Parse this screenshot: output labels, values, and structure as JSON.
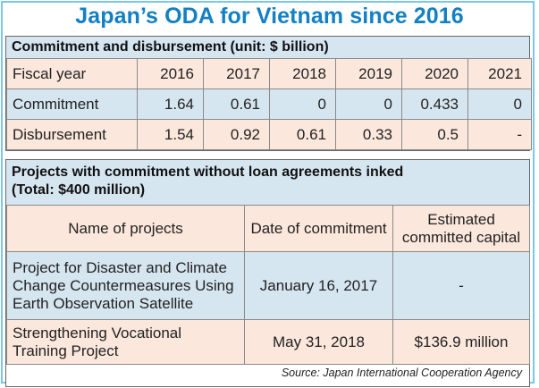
{
  "title": "Japan’s ODA for Vietnam since 2016",
  "section1": {
    "heading": "Commitment and disbursement (unit: $ billion)",
    "header_label": "Fiscal year",
    "years": [
      "2016",
      "2017",
      "2018",
      "2019",
      "2020",
      "2021"
    ],
    "rows": [
      {
        "label": "Commitment",
        "values": [
          "1.64",
          "0.61",
          "0",
          "0",
          "0.433",
          "0"
        ]
      },
      {
        "label": "Disbursement",
        "values": [
          "1.54",
          "0.92",
          "0.61",
          "0.33",
          "0.5",
          "-"
        ]
      }
    ]
  },
  "section2": {
    "heading_line1": "Projects with commitment without loan agreements inked",
    "heading_line2": "(Total: $400 million)",
    "columns": [
      "Name of projects",
      "Date of commitment",
      "Estimated committed capital"
    ],
    "projects": [
      {
        "name": "Project for Disaster and Climate Change Countermeasures Using Earth Observation Satellite",
        "date": "January 16, 2017",
        "capital": "-"
      },
      {
        "name": "Strengthening Vocational Training Project",
        "date": "May 31, 2018",
        "capital": "$136.9 million"
      }
    ],
    "source": "Source: Japan International Cooperation Agency"
  },
  "colors": {
    "title": "#1380c4",
    "frame": "#7cc6e6",
    "blue_fill": "#d6e6f1",
    "peach_fill": "#fbe7dc"
  }
}
